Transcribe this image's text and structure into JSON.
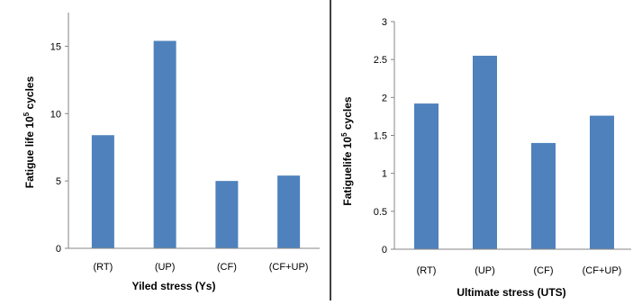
{
  "colors": {
    "bar": "#4f81bd",
    "axis": "#868686",
    "divider": "#000000",
    "text": "#000000"
  },
  "chart_data": [
    {
      "type": "bar",
      "categories": [
        "(RT)",
        "(UP)",
        "(CF)",
        "(CF+UP)"
      ],
      "values": [
        8.4,
        15.4,
        5.0,
        5.4
      ],
      "ylim": [
        0,
        17.5
      ],
      "yticks": [
        "0",
        "5",
        "10",
        "15"
      ],
      "ylabel": {
        "pre": "Fatigue life 10",
        "sup": "5",
        "post": " cycles"
      },
      "xlabel": "Yiled stress (Ys)",
      "grid": false
    },
    {
      "type": "bar",
      "categories": [
        "(RT)",
        "(UP)",
        "(CF)",
        "(CF+UP)"
      ],
      "values": [
        1.92,
        2.55,
        1.4,
        1.76
      ],
      "ylim": [
        0,
        3
      ],
      "yticks": [
        "0",
        "0.5",
        "1",
        "1.5",
        "2",
        "2.5",
        "3"
      ],
      "ylabel": {
        "pre": "Fatiguelife 10",
        "sup": "5",
        "post": " cycles"
      },
      "xlabel": "Ultimate stress (UTS)",
      "grid": false
    }
  ]
}
